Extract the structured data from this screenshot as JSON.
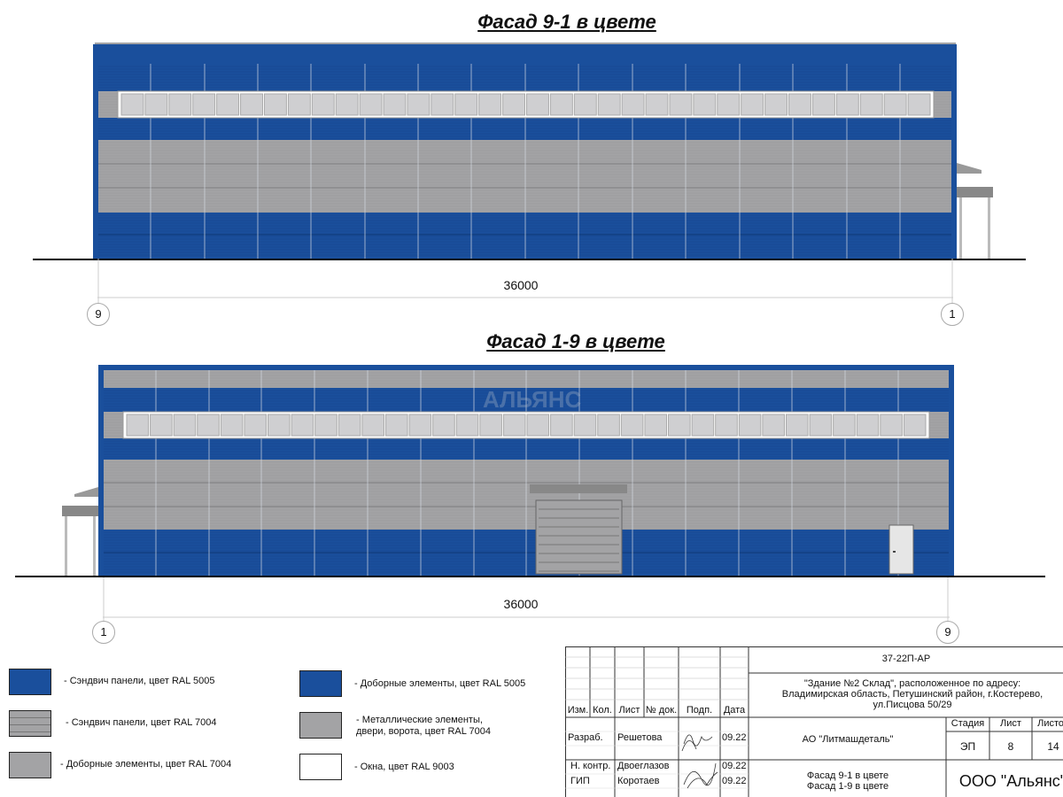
{
  "facade_top": {
    "title": "Фасад 9-1 в цвете",
    "dimension": "36000",
    "axis_left": "9",
    "axis_right": "1"
  },
  "facade_bottom": {
    "title": "Фасад 1-9 в цвете",
    "dimension": "36000",
    "axis_left": "1",
    "axis_right": "9",
    "watermark": "АЛЬЯНС"
  },
  "colors": {
    "ral5005": "#1a4f9c",
    "ral7004": "#a3a3a5",
    "ral9003": "#ffffff",
    "window_pane": "#cfcfd1"
  },
  "legend": [
    {
      "label": "- Сэндвич панели, цвет RAL 5005",
      "swatch": "blue"
    },
    {
      "label": "- Сэндвич панели, цвет RAL 7004",
      "swatch": "gray-lined"
    },
    {
      "label": "- Доборные элементы, цвет RAL 7004",
      "swatch": "gray"
    },
    {
      "label": "- Доборные элементы, цвет RAL 5005",
      "swatch": "blue"
    },
    {
      "label": "- Металлические элементы, двери, ворота, цвет RAL 7004",
      "swatch": "gray"
    },
    {
      "label": "- Окна, цвет RAL 9003",
      "swatch": "white"
    }
  ],
  "title_block": {
    "code": "37-22П-АР",
    "object": "\"Здание №2 Склад\", расположенное по адресу: Владимирская область, Петушинский район, г.Костерево, ул.Писцова 50/29",
    "headers": [
      "Изм.",
      "Кол.",
      "Лист",
      "№ док.",
      "Подп.",
      "Дата"
    ],
    "rows": [
      {
        "role": "Разраб.",
        "name": "Решетова",
        "date": "09.22"
      },
      {
        "role": "Н. контр.",
        "name": "Двоеглазов",
        "date": "09.22"
      },
      {
        "role": "ГИП",
        "name": "Коротаев",
        "date": "09.22"
      }
    ],
    "client": "АО \"Литмашдеталь\"",
    "stage_label": "Стадия",
    "sheet_label": "Лист",
    "sheets_label": "Листов",
    "stage": "ЭП",
    "sheet": "8",
    "sheets": "14",
    "sheet_title_1": "Фасад 9-1 в цвете",
    "sheet_title_2": "Фасад 1-9 в цвете",
    "company": "ООО \"Альянс\""
  }
}
